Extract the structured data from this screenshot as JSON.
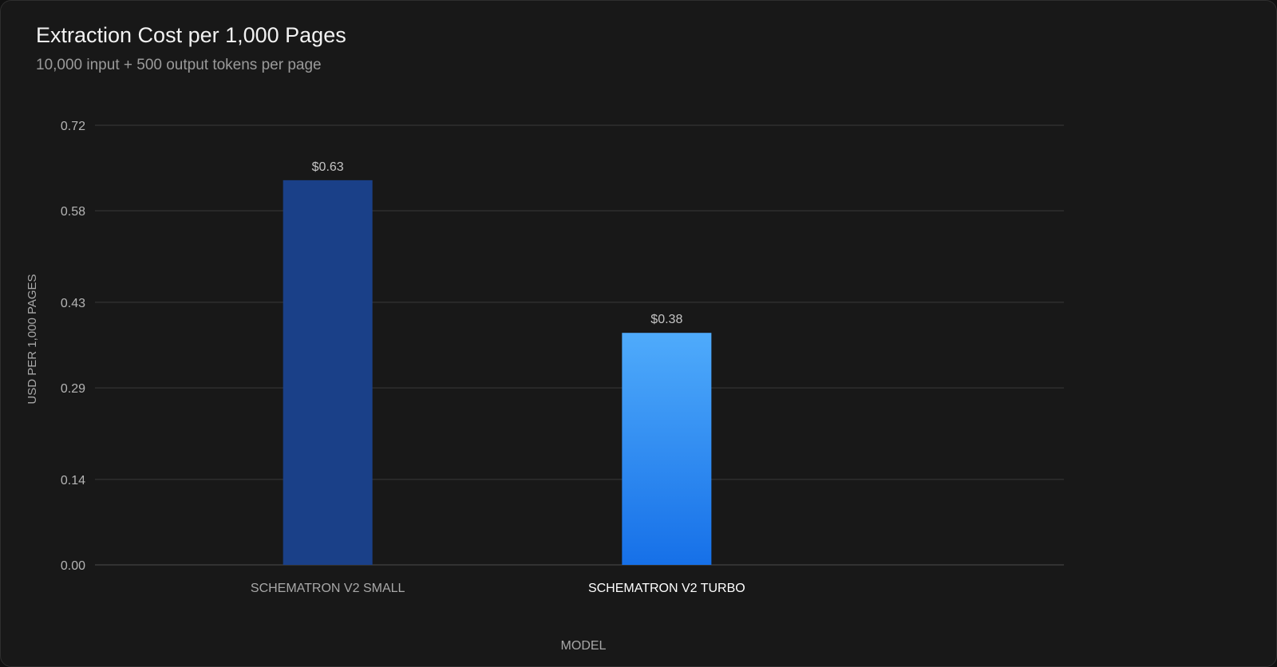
{
  "chart_data": {
    "type": "bar",
    "title": "Extraction Cost per 1,000 Pages",
    "subtitle": "10,000 input + 500 output tokens per page",
    "xlabel": "MODEL",
    "ylabel": "USD PER 1,000 PAGES",
    "ylim": [
      0,
      0.72
    ],
    "yticks": [
      "0.00",
      "0.14",
      "0.29",
      "0.43",
      "0.58",
      "0.72"
    ],
    "categories": [
      "SCHEMATRON V2 SMALL",
      "SCHEMATRON V2 TURBO"
    ],
    "values": [
      0.63,
      0.38
    ],
    "value_labels": [
      "$0.63",
      "$0.38"
    ],
    "highlighted_category": "SCHEMATRON V2 TURBO",
    "grid": true,
    "legend": "none",
    "colors": {
      "small_bar": "#1a4088",
      "turbo_bar_top": "#4fabfb",
      "turbo_bar_bottom": "#1670e8",
      "grid": "#3a3a3a",
      "category_label": "#a8a8a8",
      "category_label_highlight": "#ffffff"
    }
  }
}
